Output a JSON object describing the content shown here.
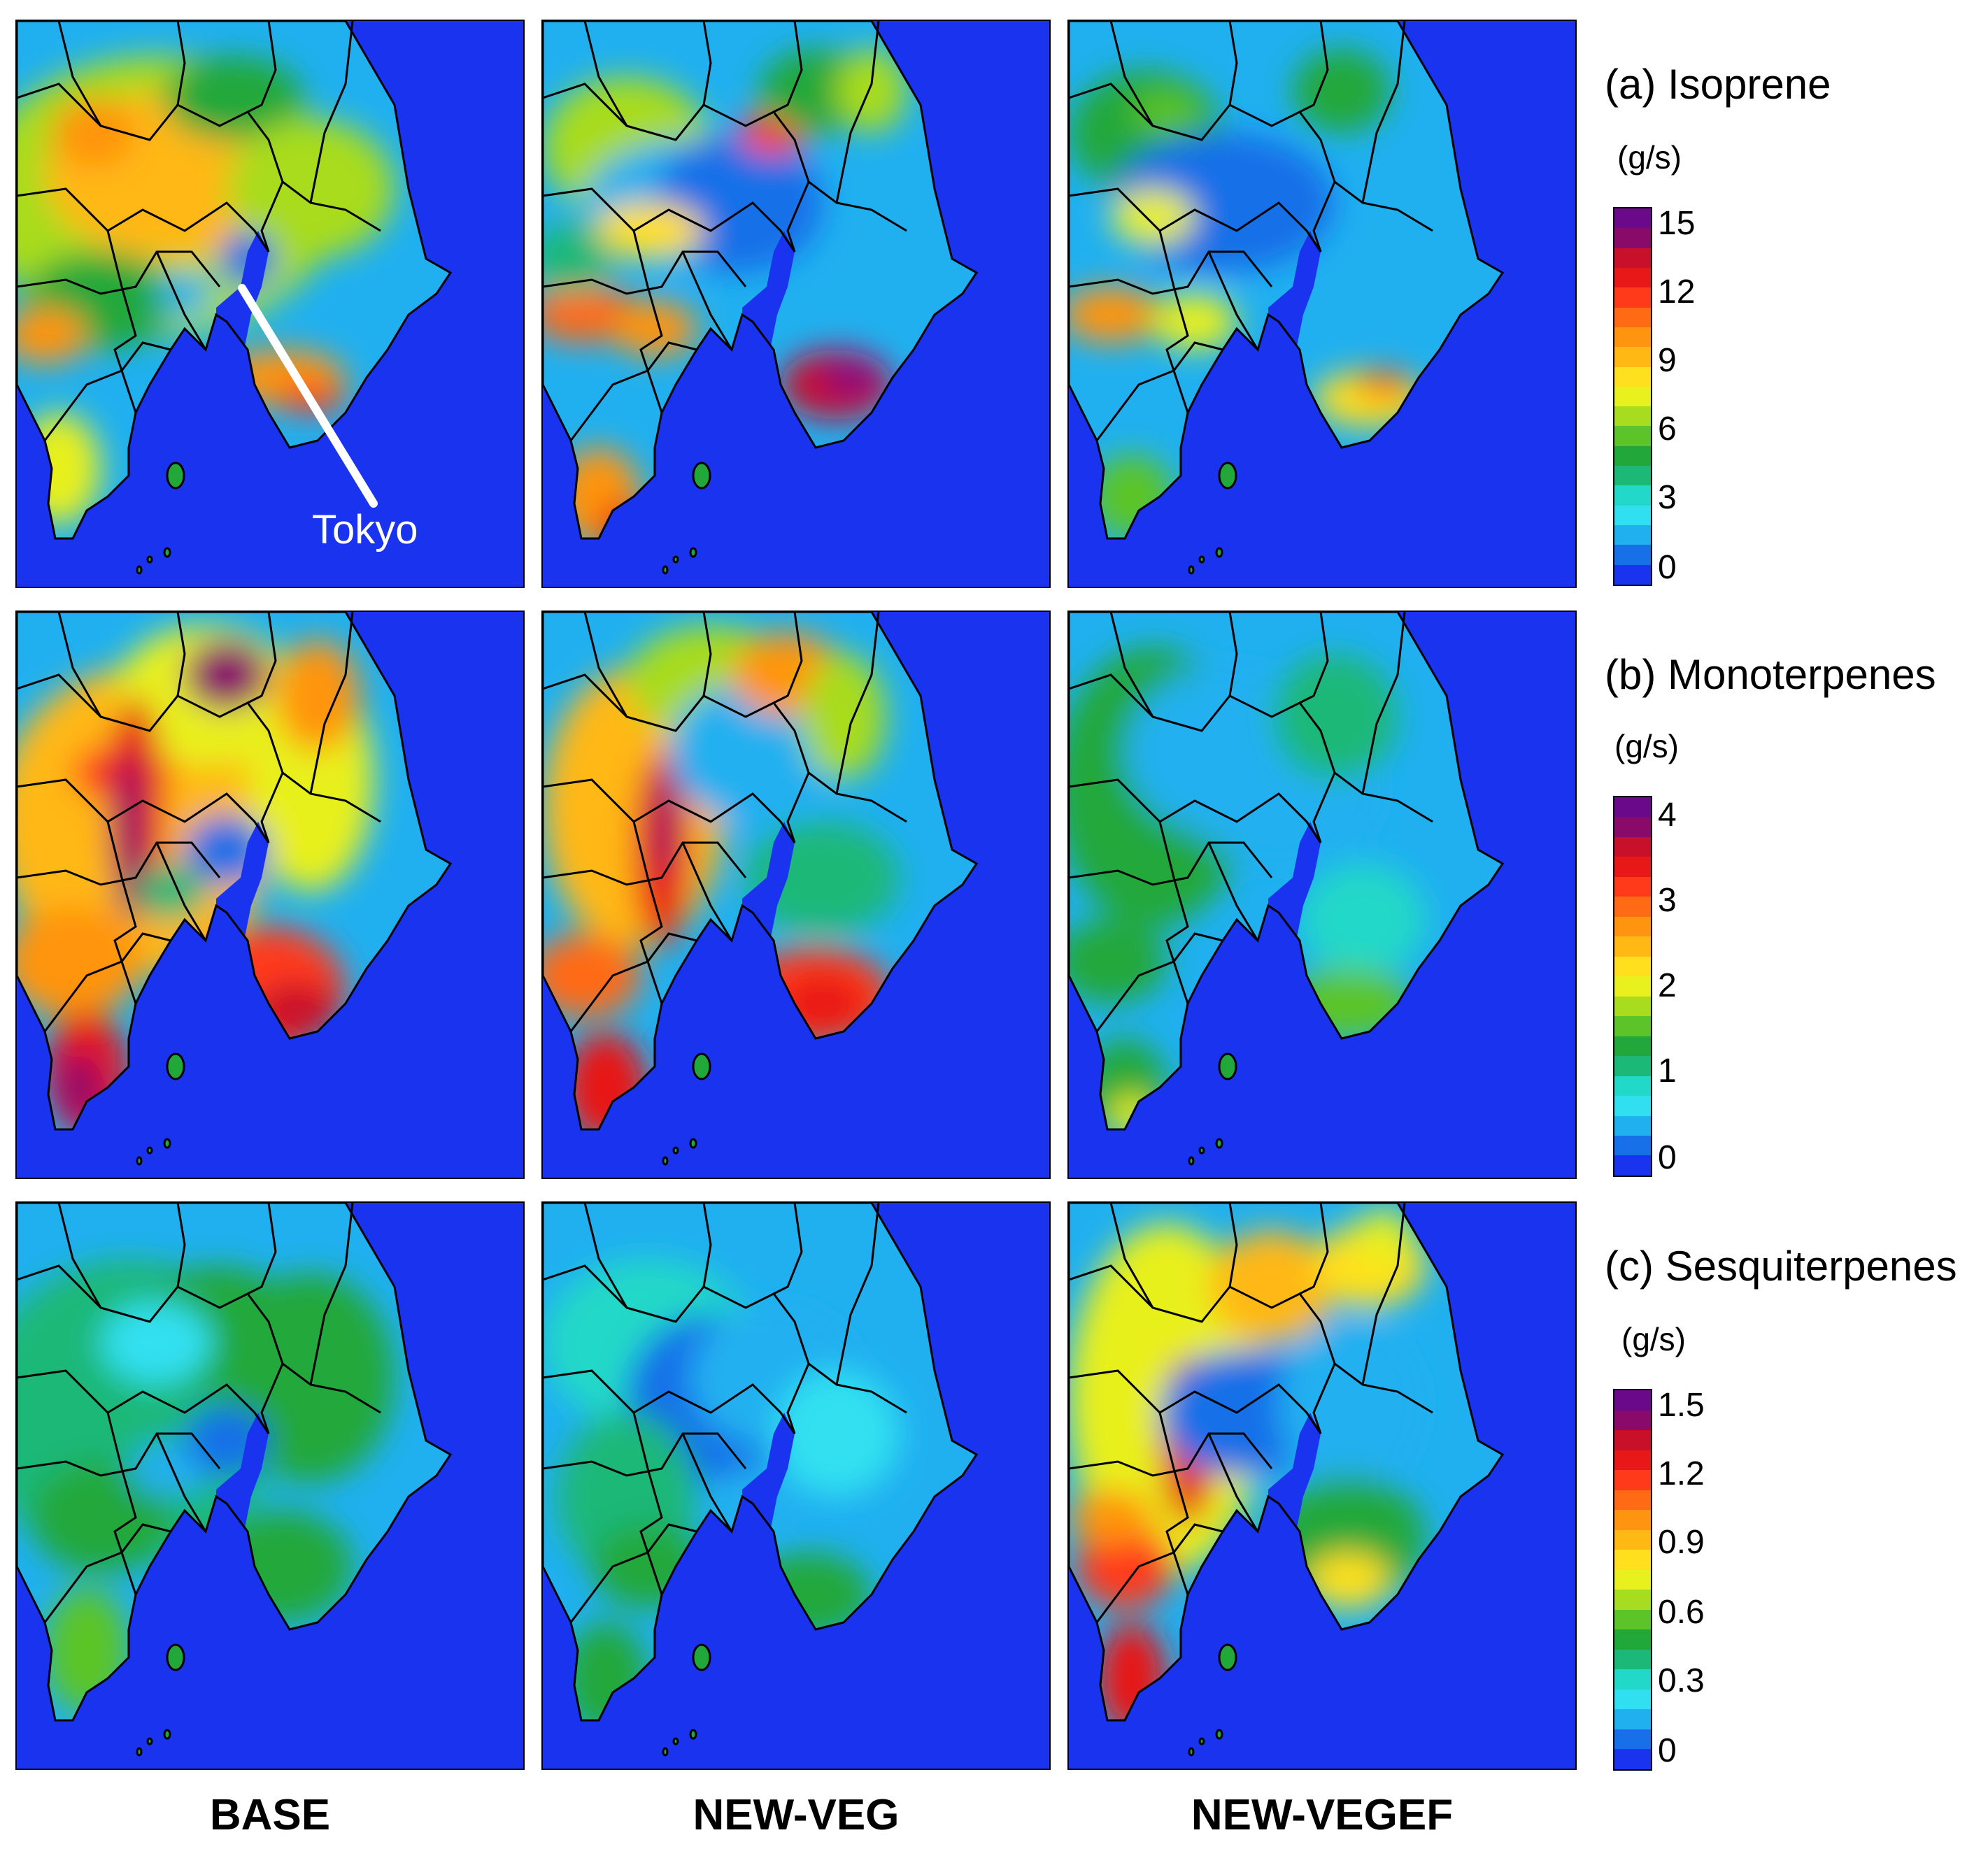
{
  "columns": [
    "BASE",
    "NEW-VEG",
    "NEW-VEGEF"
  ],
  "panels": [
    {
      "title": "(a) Isoprene",
      "unit": "(g/s)",
      "ticks": [
        "15",
        "12",
        "9",
        "6",
        "3",
        "0"
      ]
    },
    {
      "title": "(b) Monoterpenes",
      "unit": "(g/s)",
      "ticks": [
        "4",
        "3",
        "2",
        "1",
        "0"
      ]
    },
    {
      "title": "(c) Sesquiterpenes",
      "unit": "(g/s)",
      "ticks": [
        "1.5",
        "1.2",
        "0.9",
        "0.6",
        "0.3",
        "0"
      ]
    }
  ],
  "annotation": {
    "label": "Tokyo"
  },
  "colormap": [
    "#6a0a8a",
    "#8a0a6a",
    "#c8102a",
    "#e81818",
    "#ff3a1a",
    "#ff6a14",
    "#ff9410",
    "#ffb814",
    "#ffe01e",
    "#e8f01e",
    "#a8dc1e",
    "#5cc428",
    "#22a83a",
    "#1cb878",
    "#22d8c8",
    "#30e0f0",
    "#20b0f0",
    "#1870e8",
    "#1a33ee"
  ],
  "colors": {
    "ocean": "#1a33ee",
    "boundary": "#000000",
    "annotation": "#ffffff"
  }
}
